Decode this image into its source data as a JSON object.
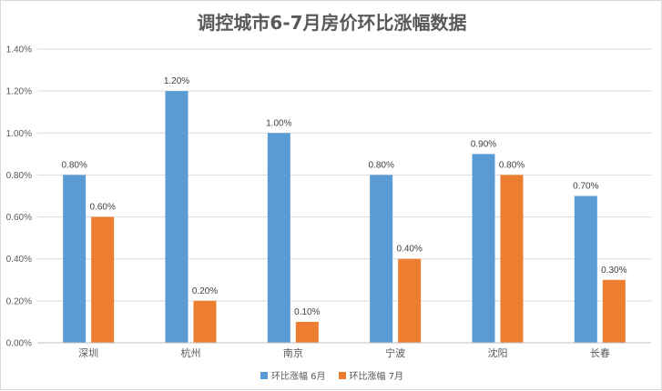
{
  "chart_data": {
    "type": "bar",
    "title": "调控城市6-7月房价环比涨幅数据",
    "categories": [
      "深圳",
      "杭州",
      "南京",
      "宁波",
      "沈阳",
      "长春"
    ],
    "series": [
      {
        "name": "环比涨幅 6月",
        "color": "#5b9bd5",
        "values": [
          0.8,
          1.2,
          1.0,
          0.8,
          0.9,
          0.7
        ],
        "labels": [
          "0.80%",
          "1.20%",
          "1.00%",
          "0.80%",
          "0.90%",
          "0.70%"
        ]
      },
      {
        "name": "环比涨幅 7月",
        "color": "#ed7d31",
        "values": [
          0.6,
          0.2,
          0.1,
          0.4,
          0.8,
          0.3
        ],
        "labels": [
          "0.60%",
          "0.20%",
          "0.10%",
          "0.40%",
          "0.80%",
          "0.30%"
        ]
      }
    ],
    "yticks": [
      "0.00%",
      "0.20%",
      "0.40%",
      "0.60%",
      "0.80%",
      "1.00%",
      "1.20%",
      "1.40%"
    ],
    "ylim": [
      0,
      1.4
    ],
    "xlabel": "",
    "ylabel": "",
    "grid": true,
    "legend": "bottom"
  }
}
